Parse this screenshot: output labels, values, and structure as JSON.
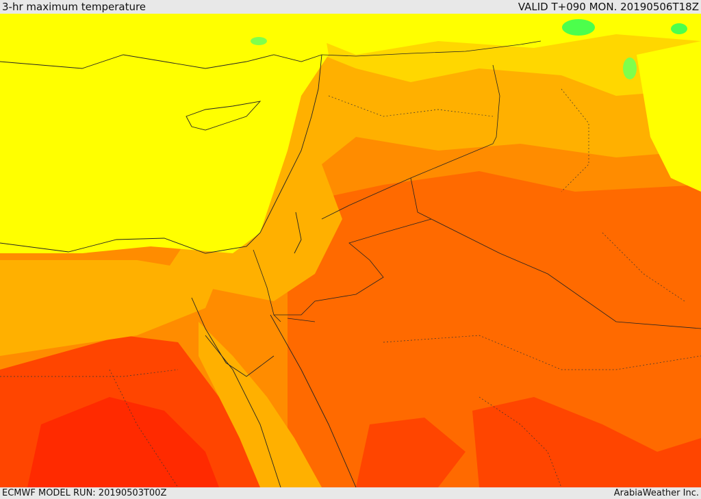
{
  "header": {
    "title": "3-hr maximum temperature",
    "valid": "VALID T+090 MON. 20190506T18Z"
  },
  "footer": {
    "model_run": "ECMWF MODEL RUN: 20190503T00Z",
    "credit": "ArabiaWeather Inc."
  },
  "colors": {
    "yellow": "#ffff00",
    "gold": "#ffd700",
    "amber": "#ffb000",
    "orange": "#ff8c00",
    "dark_orange": "#ff6a00",
    "red_orange": "#ff4500",
    "red": "#ff2a00",
    "green": "#4cff4c",
    "border": "#222222"
  }
}
